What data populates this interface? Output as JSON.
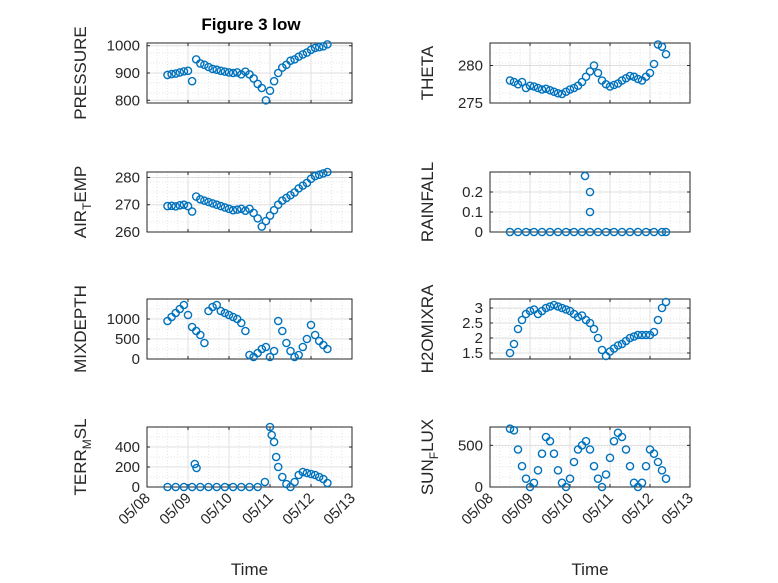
{
  "colors": {
    "marker": "#0072BD",
    "axes": "#262626",
    "grid": "#dfdfdf",
    "background": "#ffffff"
  },
  "figure_title": "Figure 3 low",
  "x_axis": {
    "label": "Time",
    "ticks": [
      "05/08",
      "05/09",
      "05/10",
      "05/11",
      "05/12",
      "05/13"
    ],
    "range_days": [
      "05/08",
      "05/13"
    ]
  },
  "chart_data": [
    {
      "type": "scatter",
      "marker": "open-circle",
      "title": "Figure 3 low",
      "ylabel": "PRESSURE",
      "xlabel": "",
      "ylim": [
        790,
        1010
      ],
      "yticks": [
        "800",
        "900",
        "1000"
      ],
      "grid": true,
      "x": [
        "05/08 12:00",
        "05/08 14:24",
        "05/08 16:48",
        "05/08 19:12",
        "05/08 21:36",
        "05/09 00:00",
        "05/09 02:24",
        "05/09 04:48",
        "05/09 07:12",
        "05/09 09:36",
        "05/09 12:00",
        "05/09 14:24",
        "05/09 16:48",
        "05/09 19:12",
        "05/09 21:36",
        "05/10 00:00",
        "05/10 02:24",
        "05/10 04:48",
        "05/10 07:12",
        "05/10 09:36",
        "05/10 12:00",
        "05/10 14:24",
        "05/10 16:48",
        "05/10 19:12",
        "05/10 21:36",
        "05/11 00:00",
        "05/11 02:24",
        "05/11 04:48",
        "05/11 07:12",
        "05/11 09:36",
        "05/11 12:00",
        "05/11 14:24",
        "05/11 16:48",
        "05/11 19:12",
        "05/11 21:36",
        "05/12 00:00",
        "05/12 02:24",
        "05/12 04:48",
        "05/12 07:12",
        "05/12 09:36"
      ],
      "y": [
        893,
        896,
        898,
        902,
        906,
        908,
        870,
        950,
        935,
        930,
        922,
        915,
        912,
        908,
        905,
        902,
        900,
        902,
        895,
        905,
        895,
        880,
        860,
        845,
        800,
        835,
        870,
        900,
        920,
        930,
        945,
        950,
        960,
        968,
        975,
        985,
        992,
        995,
        998,
        1005
      ]
    },
    {
      "type": "scatter",
      "marker": "open-circle",
      "ylabel": "THETA",
      "xlabel": "",
      "ylim": [
        275,
        283
      ],
      "yticks": [
        "275",
        "280"
      ],
      "grid": true,
      "x": [
        "05/08 12:00",
        "05/08 14:24",
        "05/08 16:48",
        "05/08 19:12",
        "05/08 21:36",
        "05/09 00:00",
        "05/09 02:24",
        "05/09 04:48",
        "05/09 07:12",
        "05/09 09:36",
        "05/09 12:00",
        "05/09 14:24",
        "05/09 16:48",
        "05/09 19:12",
        "05/09 21:36",
        "05/10 00:00",
        "05/10 02:24",
        "05/10 04:48",
        "05/10 07:12",
        "05/10 09:36",
        "05/10 12:00",
        "05/10 14:24",
        "05/10 16:48",
        "05/10 19:12",
        "05/10 21:36",
        "05/11 00:00",
        "05/11 02:24",
        "05/11 04:48",
        "05/11 07:12",
        "05/11 09:36",
        "05/11 12:00",
        "05/11 14:24",
        "05/11 16:48",
        "05/11 19:12",
        "05/11 21:36",
        "05/12 00:00",
        "05/12 02:24",
        "05/12 04:48",
        "05/12 07:12",
        "05/12 09:36"
      ],
      "y": [
        278.0,
        277.8,
        277.5,
        277.8,
        277.0,
        277.3,
        277.2,
        277.0,
        276.8,
        276.9,
        276.7,
        276.5,
        276.3,
        276.2,
        276.5,
        276.8,
        277.0,
        277.3,
        277.8,
        278.5,
        279.2,
        280.0,
        279.0,
        278.0,
        277.5,
        277.2,
        277.4,
        277.6,
        278.0,
        278.3,
        278.6,
        278.5,
        278.2,
        278.0,
        278.5,
        279.0,
        280.2,
        282.8,
        282.5,
        281.5
      ]
    },
    {
      "type": "scatter",
      "marker": "open-circle",
      "ylabel": "AIR_TEMP",
      "xlabel": "",
      "ylim": [
        260,
        282
      ],
      "yticks": [
        "260",
        "270",
        "280"
      ],
      "grid": true,
      "x": [
        "05/08 12:00",
        "05/08 14:24",
        "05/08 16:48",
        "05/08 19:12",
        "05/08 21:36",
        "05/09 00:00",
        "05/09 02:24",
        "05/09 04:48",
        "05/09 07:12",
        "05/09 09:36",
        "05/09 12:00",
        "05/09 14:24",
        "05/09 16:48",
        "05/09 19:12",
        "05/09 21:36",
        "05/10 00:00",
        "05/10 02:24",
        "05/10 04:48",
        "05/10 07:12",
        "05/10 09:36",
        "05/10 12:00",
        "05/10 14:24",
        "05/10 16:48",
        "05/10 19:12",
        "05/10 21:36",
        "05/11 00:00",
        "05/11 02:24",
        "05/11 04:48",
        "05/11 07:12",
        "05/11 09:36",
        "05/11 12:00",
        "05/11 14:24",
        "05/11 16:48",
        "05/11 19:12",
        "05/11 21:36",
        "05/12 00:00",
        "05/12 02:24",
        "05/12 04:48",
        "05/12 07:12",
        "05/12 09:36"
      ],
      "y": [
        269.5,
        269.6,
        269.4,
        269.8,
        270.0,
        269.5,
        267.5,
        273.0,
        272.0,
        271.5,
        271.0,
        270.5,
        270.0,
        269.5,
        269.0,
        268.5,
        268.0,
        268.2,
        268.5,
        267.8,
        268.5,
        267.0,
        265.0,
        262.0,
        264.0,
        266.0,
        268.0,
        270.0,
        271.5,
        272.5,
        273.5,
        274.5,
        276.0,
        277.0,
        278.0,
        279.5,
        280.5,
        281.0,
        281.5,
        282.0
      ]
    },
    {
      "type": "scatter",
      "marker": "open-circle",
      "ylabel": "RAINFALL",
      "xlabel": "",
      "ylim": [
        0,
        0.3
      ],
      "yticks": [
        "0",
        "0.1",
        "0.2"
      ],
      "grid": true,
      "x": [
        "05/08 12:00",
        "05/08 16:48",
        "05/08 21:36",
        "05/09 02:24",
        "05/09 07:12",
        "05/09 12:00",
        "05/09 16:48",
        "05/09 21:36",
        "05/10 02:24",
        "05/10 07:12",
        "05/10 09:00",
        "05/10 12:00",
        "05/10 12:00",
        "05/10 12:00",
        "05/10 16:48",
        "05/10 21:36",
        "05/11 02:24",
        "05/11 07:12",
        "05/11 12:00",
        "05/11 16:48",
        "05/11 21:36",
        "05/12 02:24",
        "05/12 07:12",
        "05/12 09:36"
      ],
      "y": [
        0,
        0,
        0,
        0,
        0,
        0,
        0,
        0,
        0,
        0,
        0.28,
        0.2,
        0.1,
        0,
        0,
        0,
        0,
        0,
        0,
        0,
        0,
        0,
        0,
        0
      ]
    },
    {
      "type": "scatter",
      "marker": "open-circle",
      "ylabel": "MIXDEPTH",
      "xlabel": "",
      "ylim": [
        0,
        1500
      ],
      "yticks": [
        "0",
        "500",
        "1000"
      ],
      "grid": true,
      "x": [
        "05/08 12:00",
        "05/08 14:24",
        "05/08 16:48",
        "05/08 19:12",
        "05/08 21:36",
        "05/09 00:00",
        "05/09 02:24",
        "05/09 04:48",
        "05/09 07:12",
        "05/09 09:36",
        "05/09 12:00",
        "05/09 14:24",
        "05/09 16:48",
        "05/09 19:12",
        "05/09 21:36",
        "05/10 00:00",
        "05/10 02:24",
        "05/10 04:48",
        "05/10 07:12",
        "05/10 09:36",
        "05/10 12:00",
        "05/10 14:24",
        "05/10 16:48",
        "05/10 19:12",
        "05/10 21:36",
        "05/11 00:00",
        "05/11 02:24",
        "05/11 04:48",
        "05/11 07:12",
        "05/11 09:36",
        "05/11 12:00",
        "05/11 14:24",
        "05/11 16:48",
        "05/11 19:12",
        "05/11 21:36",
        "05/12 00:00",
        "05/12 02:24",
        "05/12 04:48",
        "05/12 07:12",
        "05/12 09:36"
      ],
      "y": [
        950,
        1050,
        1150,
        1250,
        1350,
        1100,
        800,
        700,
        600,
        400,
        1200,
        1300,
        1350,
        1200,
        1150,
        1100,
        1050,
        1000,
        900,
        700,
        100,
        50,
        150,
        250,
        300,
        50,
        200,
        950,
        700,
        400,
        200,
        50,
        100,
        300,
        500,
        850,
        600,
        450,
        350,
        250
      ]
    },
    {
      "type": "scatter",
      "marker": "open-circle",
      "ylabel": "H2OMIXRA",
      "xlabel": "",
      "ylim": [
        1.3,
        3.3
      ],
      "yticks": [
        "1.5",
        "2",
        "2.5",
        "3"
      ],
      "grid": true,
      "x": [
        "05/08 12:00",
        "05/08 14:24",
        "05/08 16:48",
        "05/08 19:12",
        "05/08 21:36",
        "05/09 00:00",
        "05/09 02:24",
        "05/09 04:48",
        "05/09 07:12",
        "05/09 09:36",
        "05/09 12:00",
        "05/09 14:24",
        "05/09 16:48",
        "05/09 19:12",
        "05/09 21:36",
        "05/10 00:00",
        "05/10 02:24",
        "05/10 04:48",
        "05/10 07:12",
        "05/10 09:36",
        "05/10 12:00",
        "05/10 14:24",
        "05/10 16:48",
        "05/10 19:12",
        "05/10 21:36",
        "05/11 00:00",
        "05/11 02:24",
        "05/11 04:48",
        "05/11 07:12",
        "05/11 09:36",
        "05/11 12:00",
        "05/11 14:24",
        "05/11 16:48",
        "05/11 19:12",
        "05/11 21:36",
        "05/12 00:00",
        "05/12 02:24",
        "05/12 04:48",
        "05/12 07:12",
        "05/12 09:36"
      ],
      "y": [
        1.5,
        1.8,
        2.3,
        2.6,
        2.8,
        2.9,
        2.95,
        2.8,
        2.9,
        3.0,
        3.05,
        3.1,
        3.05,
        3.0,
        2.95,
        2.9,
        2.8,
        2.7,
        2.75,
        2.6,
        2.5,
        2.3,
        2.0,
        1.6,
        1.4,
        1.55,
        1.65,
        1.75,
        1.8,
        1.9,
        2.0,
        2.05,
        2.1,
        2.1,
        2.1,
        2.1,
        2.2,
        2.6,
        3.0,
        3.2
      ]
    },
    {
      "type": "scatter",
      "marker": "open-circle",
      "ylabel": "TERR_MSL",
      "xlabel": "Time",
      "ylim": [
        0,
        600
      ],
      "yticks": [
        "0",
        "200",
        "400"
      ],
      "grid": true,
      "x": [
        "05/08 12:00",
        "05/08 16:48",
        "05/08 21:36",
        "05/09 02:24",
        "05/09 04:00",
        "05/09 05:00",
        "05/09 07:12",
        "05/09 12:00",
        "05/09 16:48",
        "05/09 21:36",
        "05/10 02:24",
        "05/10 07:12",
        "05/10 12:00",
        "05/10 16:48",
        "05/10 21:00",
        "05/11 00:00",
        "05/11 01:00",
        "05/11 02:24",
        "05/11 03:36",
        "05/11 04:48",
        "05/11 07:12",
        "05/11 09:36",
        "05/11 12:00",
        "05/11 14:24",
        "05/11 16:48",
        "05/11 19:12",
        "05/11 21:36",
        "05/12 00:00",
        "05/12 02:24",
        "05/12 04:48",
        "05/12 07:12",
        "05/12 09:36"
      ],
      "y": [
        0,
        0,
        0,
        0,
        230,
        190,
        0,
        0,
        0,
        0,
        0,
        0,
        0,
        0,
        50,
        600,
        520,
        450,
        300,
        200,
        100,
        30,
        0,
        50,
        120,
        150,
        140,
        130,
        120,
        100,
        80,
        40
      ]
    },
    {
      "type": "scatter",
      "marker": "open-circle",
      "ylabel": "SUN_FLUX",
      "xlabel": "Time",
      "ylim": [
        0,
        720
      ],
      "yticks": [
        "0",
        "500"
      ],
      "grid": true,
      "x": [
        "05/08 12:00",
        "05/08 14:24",
        "05/08 16:48",
        "05/08 19:12",
        "05/08 21:36",
        "05/09 00:00",
        "05/09 02:24",
        "05/09 04:48",
        "05/09 07:12",
        "05/09 09:36",
        "05/09 12:00",
        "05/09 14:24",
        "05/09 16:48",
        "05/09 19:12",
        "05/09 21:36",
        "05/10 00:00",
        "05/10 02:24",
        "05/10 04:48",
        "05/10 07:12",
        "05/10 09:36",
        "05/10 12:00",
        "05/10 14:24",
        "05/10 16:48",
        "05/10 19:12",
        "05/10 21:36",
        "05/11 00:00",
        "05/11 02:24",
        "05/11 04:48",
        "05/11 07:12",
        "05/11 09:36",
        "05/11 12:00",
        "05/11 14:24",
        "05/11 16:48",
        "05/11 19:12",
        "05/11 21:36",
        "05/12 00:00",
        "05/12 02:24",
        "05/12 04:48",
        "05/12 07:12",
        "05/12 09:36"
      ],
      "y": [
        700,
        680,
        450,
        250,
        100,
        0,
        50,
        200,
        400,
        600,
        550,
        400,
        200,
        50,
        0,
        100,
        300,
        450,
        500,
        550,
        450,
        250,
        100,
        0,
        150,
        350,
        550,
        650,
        600,
        450,
        250,
        50,
        0,
        50,
        250,
        450,
        400,
        300,
        200,
        100
      ]
    }
  ]
}
